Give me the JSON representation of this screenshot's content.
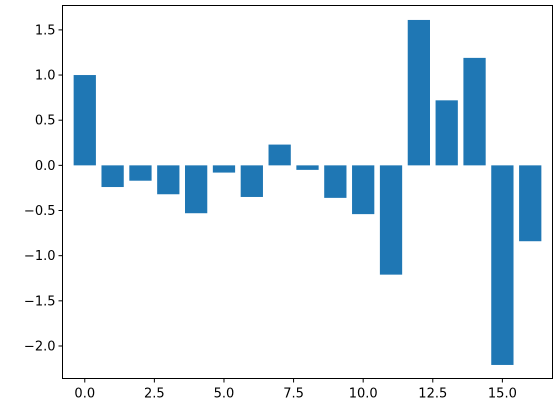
{
  "chart_data": {
    "type": "bar",
    "x": [
      0,
      1,
      2,
      3,
      4,
      5,
      6,
      7,
      8,
      9,
      10,
      11,
      12,
      13,
      14,
      15,
      16
    ],
    "values": [
      1.0,
      -0.24,
      -0.17,
      -0.32,
      -0.53,
      -0.08,
      -0.35,
      0.23,
      -0.05,
      -0.36,
      -0.54,
      -1.21,
      1.61,
      0.72,
      1.19,
      -2.21,
      -0.84
    ],
    "bar_color": "#1f77b4",
    "xlim": [
      -0.8,
      16.8
    ],
    "ylim": [
      -2.36,
      1.77
    ],
    "xticks": [
      0,
      2.5,
      5,
      7.5,
      10,
      12.5,
      15
    ],
    "xtick_labels": [
      "0.0",
      "2.5",
      "5.0",
      "7.5",
      "10.0",
      "12.5",
      "15.0"
    ],
    "yticks": [
      1.5,
      1.0,
      0.5,
      0.0,
      -0.5,
      -1.0,
      -1.5,
      -2.0
    ],
    "ytick_labels": [
      "1.5",
      "1.0",
      "0.5",
      "0.0",
      "−0.5",
      "−1.0",
      "−1.5",
      "−2.0"
    ],
    "grid": false,
    "legend": "none"
  }
}
